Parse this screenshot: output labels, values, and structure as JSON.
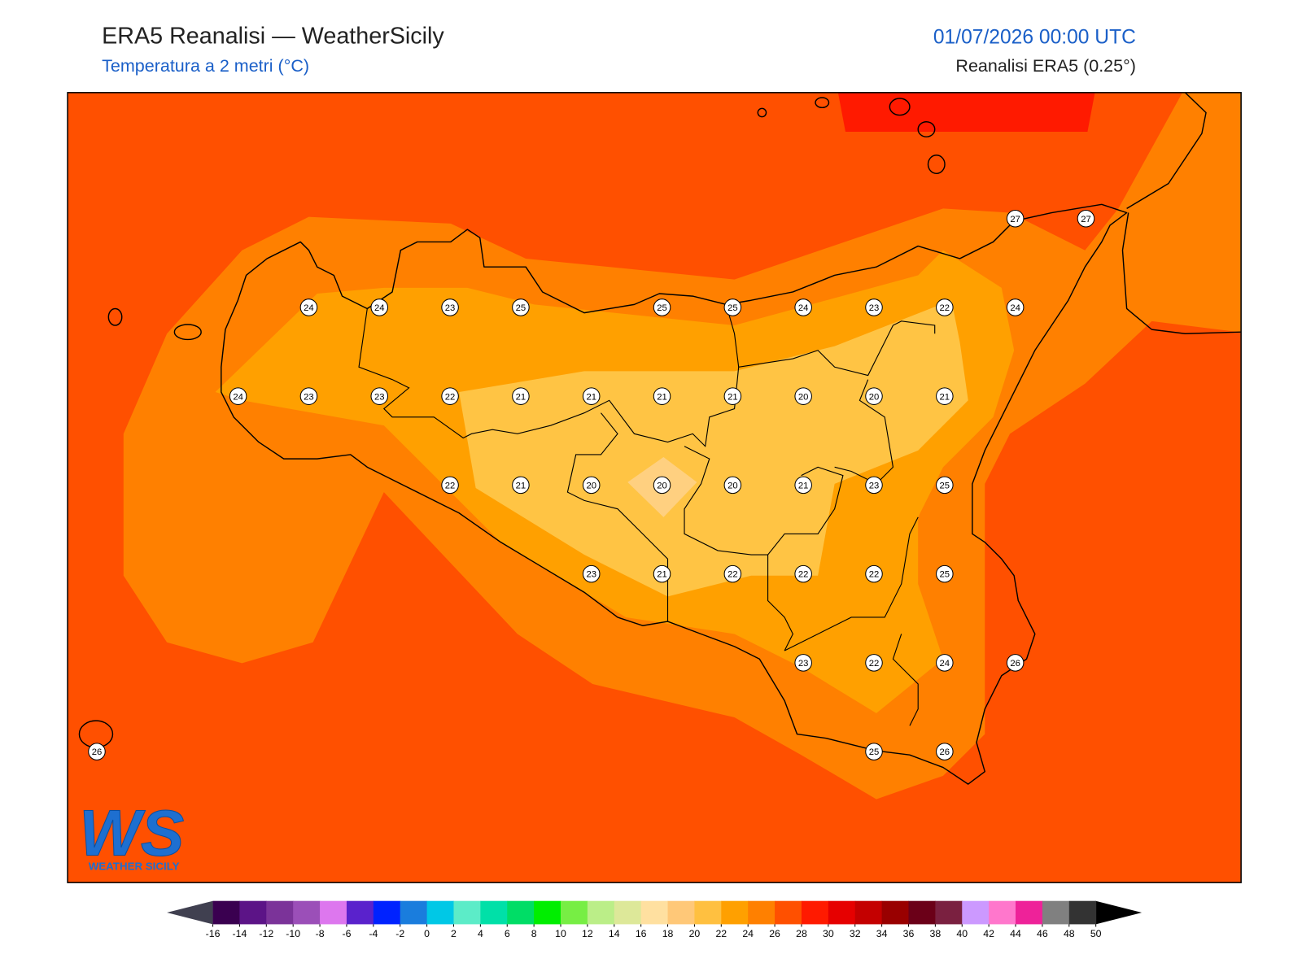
{
  "header": {
    "title": "ERA5 Reanalisi — WeatherSicily",
    "subtitle": "Temperatura a 2 metri (°C)",
    "timestamp": "01/07/2026 00:00 UTC",
    "source": "Reanalisi ERA5 (0.25°)"
  },
  "temperature_grid": {
    "rows": [
      [
        null,
        null,
        null,
        null,
        null,
        null,
        null,
        null,
        null,
        null,
        null,
        null,
        null,
        27,
        27
      ],
      [
        null,
        null,
        null,
        24,
        24,
        23,
        25,
        null,
        25,
        25,
        24,
        23,
        22,
        24,
        null
      ],
      [
        null,
        null,
        24,
        23,
        23,
        22,
        21,
        21,
        21,
        21,
        20,
        20,
        21,
        null,
        null
      ],
      [
        null,
        null,
        null,
        null,
        null,
        22,
        21,
        20,
        20,
        20,
        21,
        23,
        25,
        null,
        null
      ],
      [
        null,
        null,
        null,
        null,
        null,
        null,
        null,
        23,
        21,
        22,
        22,
        22,
        25,
        null,
        null
      ],
      [
        null,
        null,
        null,
        null,
        null,
        null,
        null,
        null,
        null,
        null,
        23,
        22,
        24,
        26,
        null
      ],
      [
        26,
        null,
        null,
        null,
        null,
        null,
        null,
        null,
        null,
        null,
        null,
        25,
        26,
        null,
        null
      ]
    ]
  },
  "colorbar": {
    "ticks": [
      -16,
      -14,
      -12,
      -10,
      -8,
      -6,
      -4,
      -2,
      0,
      2,
      4,
      6,
      8,
      10,
      12,
      14,
      16,
      18,
      20,
      22,
      24,
      26,
      28,
      30,
      32,
      34,
      36,
      38,
      40,
      42,
      44,
      46,
      48,
      50
    ],
    "colors": [
      "#3a0050",
      "#5c1487",
      "#7b3399",
      "#9b4fb8",
      "#dd77ee",
      "#5a22cc",
      "#0022ff",
      "#1a7ddd",
      "#00c8e6",
      "#5cecc8",
      "#00e0a8",
      "#00dd66",
      "#00ee00",
      "#77ee44",
      "#bbee88",
      "#dde899",
      "#ffe0a0",
      "#ffc878",
      "#ffc040",
      "#ffa000",
      "#ff8000",
      "#ff5000",
      "#ff1a00",
      "#e60000",
      "#c40000",
      "#990000",
      "#6b0018",
      "#7a2040",
      "#cc99ff",
      "#ff77cc",
      "#ee2299",
      "#808080",
      "#333333"
    ],
    "under_color": "#404050",
    "over_color": "#000000"
  },
  "logo": {
    "mark": "WS",
    "caption": "WEATHER SICILY"
  }
}
